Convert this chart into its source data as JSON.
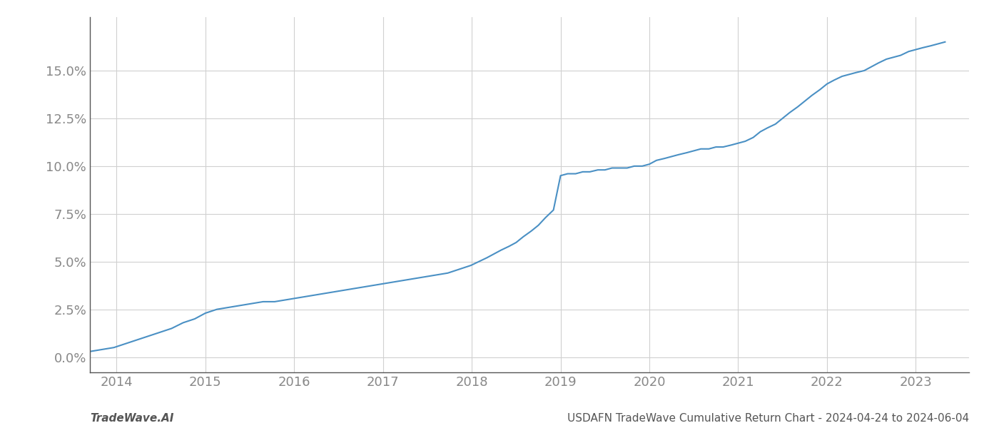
{
  "x_years": [
    2013.32,
    2013.45,
    2013.58,
    2013.71,
    2013.84,
    2013.97,
    2014.1,
    2014.23,
    2014.36,
    2014.49,
    2014.62,
    2014.75,
    2014.88,
    2015.0,
    2015.13,
    2015.26,
    2015.39,
    2015.52,
    2015.65,
    2015.78,
    2015.91,
    2016.04,
    2016.17,
    2016.3,
    2016.43,
    2016.56,
    2016.69,
    2016.82,
    2016.95,
    2017.08,
    2017.21,
    2017.34,
    2017.47,
    2017.6,
    2017.73,
    2017.86,
    2017.99,
    2018.08,
    2018.17,
    2018.25,
    2018.33,
    2018.42,
    2018.5,
    2018.58,
    2018.67,
    2018.75,
    2018.83,
    2018.92,
    2019.0,
    2019.08,
    2019.17,
    2019.25,
    2019.33,
    2019.42,
    2019.5,
    2019.58,
    2019.67,
    2019.75,
    2019.83,
    2019.92,
    2020.0,
    2020.08,
    2020.17,
    2020.25,
    2020.33,
    2020.42,
    2020.5,
    2020.58,
    2020.67,
    2020.75,
    2020.83,
    2020.92,
    2021.0,
    2021.08,
    2021.17,
    2021.25,
    2021.33,
    2021.42,
    2021.5,
    2021.58,
    2021.67,
    2021.75,
    2021.83,
    2021.92,
    2022.0,
    2022.08,
    2022.17,
    2022.25,
    2022.33,
    2022.42,
    2022.5,
    2022.58,
    2022.67,
    2022.75,
    2022.83,
    2022.92,
    2023.0,
    2023.08,
    2023.17,
    2023.25,
    2023.33
  ],
  "y_values": [
    0.0,
    0.001,
    0.002,
    0.003,
    0.004,
    0.005,
    0.007,
    0.009,
    0.011,
    0.013,
    0.015,
    0.018,
    0.02,
    0.023,
    0.025,
    0.026,
    0.027,
    0.028,
    0.029,
    0.029,
    0.03,
    0.031,
    0.032,
    0.033,
    0.034,
    0.035,
    0.036,
    0.037,
    0.038,
    0.039,
    0.04,
    0.041,
    0.042,
    0.043,
    0.044,
    0.046,
    0.048,
    0.05,
    0.052,
    0.054,
    0.056,
    0.058,
    0.06,
    0.063,
    0.066,
    0.069,
    0.073,
    0.077,
    0.095,
    0.096,
    0.096,
    0.097,
    0.097,
    0.098,
    0.098,
    0.099,
    0.099,
    0.099,
    0.1,
    0.1,
    0.101,
    0.103,
    0.104,
    0.105,
    0.106,
    0.107,
    0.108,
    0.109,
    0.109,
    0.11,
    0.11,
    0.111,
    0.112,
    0.113,
    0.115,
    0.118,
    0.12,
    0.122,
    0.125,
    0.128,
    0.131,
    0.134,
    0.137,
    0.14,
    0.143,
    0.145,
    0.147,
    0.148,
    0.149,
    0.15,
    0.152,
    0.154,
    0.156,
    0.157,
    0.158,
    0.16,
    0.161,
    0.162,
    0.163,
    0.164,
    0.165
  ],
  "line_color": "#4a90c4",
  "line_width": 1.5,
  "background_color": "#ffffff",
  "grid_color": "#d0d0d0",
  "x_ticks": [
    2014,
    2015,
    2016,
    2017,
    2018,
    2019,
    2020,
    2021,
    2022,
    2023
  ],
  "y_ticks": [
    0.0,
    0.025,
    0.05,
    0.075,
    0.1,
    0.125,
    0.15
  ],
  "y_tick_labels": [
    "0.0%",
    "2.5%",
    "5.0%",
    "7.5%",
    "10.0%",
    "12.5%",
    "15.0%"
  ],
  "xlim": [
    2013.7,
    2023.6
  ],
  "ylim": [
    -0.008,
    0.178
  ],
  "footer_left": "TradeWave.AI",
  "footer_right": "USDAFN TradeWave Cumulative Return Chart - 2024-04-24 to 2024-06-04",
  "footer_fontsize": 11,
  "tick_fontsize": 13,
  "axis_color": "#888888"
}
